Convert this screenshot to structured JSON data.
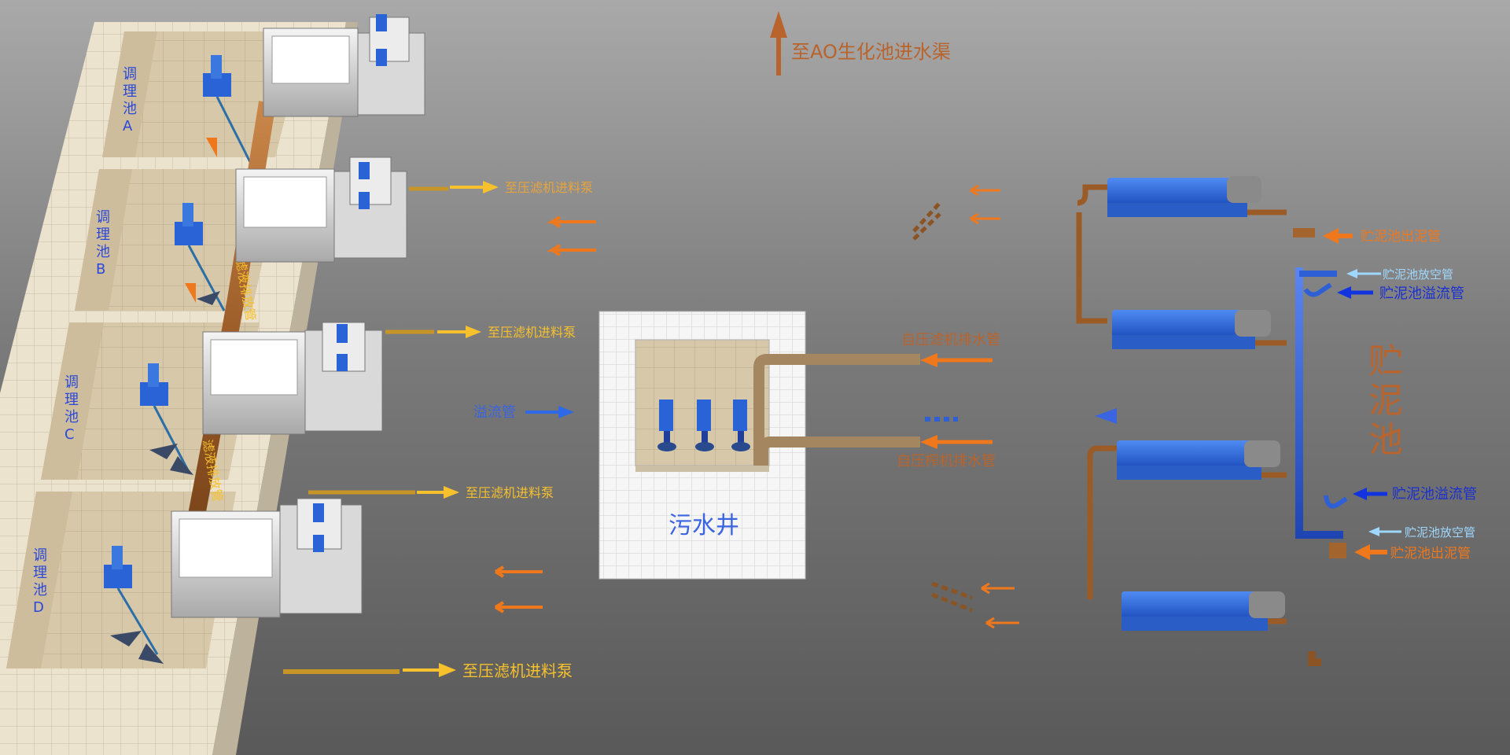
{
  "colors": {
    "brown_pipe": "#a4642e",
    "blue_pipe": "#2f5fd4",
    "orange_arrow": "#f0781c",
    "yellow_arrow": "#f6c12d",
    "pump_blue": "#2a63d6",
    "tank_wall": "#ece3cf",
    "background": "#888888"
  },
  "tanks": {
    "a": "调理池A",
    "b": "调理池B",
    "c": "调理池C",
    "d": "调理池D"
  },
  "drain_pipe_label": "滤液排放管",
  "top_label": "至AO生化池进水渠",
  "feed_pump_labels": [
    "至压滤机进料泵",
    "至压滤机进料泵",
    "至压滤机进料泵",
    "至压滤机进料泵"
  ],
  "overflow_pipe_label": "溢流管",
  "sewage_well_label": "污水井",
  "self_press_drain_label": "自压滤机排水管",
  "press_drain_label": "自压榨机排水管",
  "sludge_tank_label": "贮泥池",
  "sludge_tank_pipes": {
    "outlet_top": "贮泥池出泥管",
    "empty_top": "贮泥池放空管",
    "overflow_top": "贮泥池溢流管",
    "overflow_bottom": "贮泥池溢流管",
    "empty_bottom": "贮泥池放空管",
    "outlet_bottom": "贮泥池出泥管"
  },
  "icons": {
    "arrow_up": "arrow-up-icon",
    "arrow_right": "arrow-right-icon",
    "arrow_left": "arrow-left-icon",
    "press": "filter-press-icon",
    "pump": "screw-pump-icon",
    "mixer": "mixer-icon"
  }
}
